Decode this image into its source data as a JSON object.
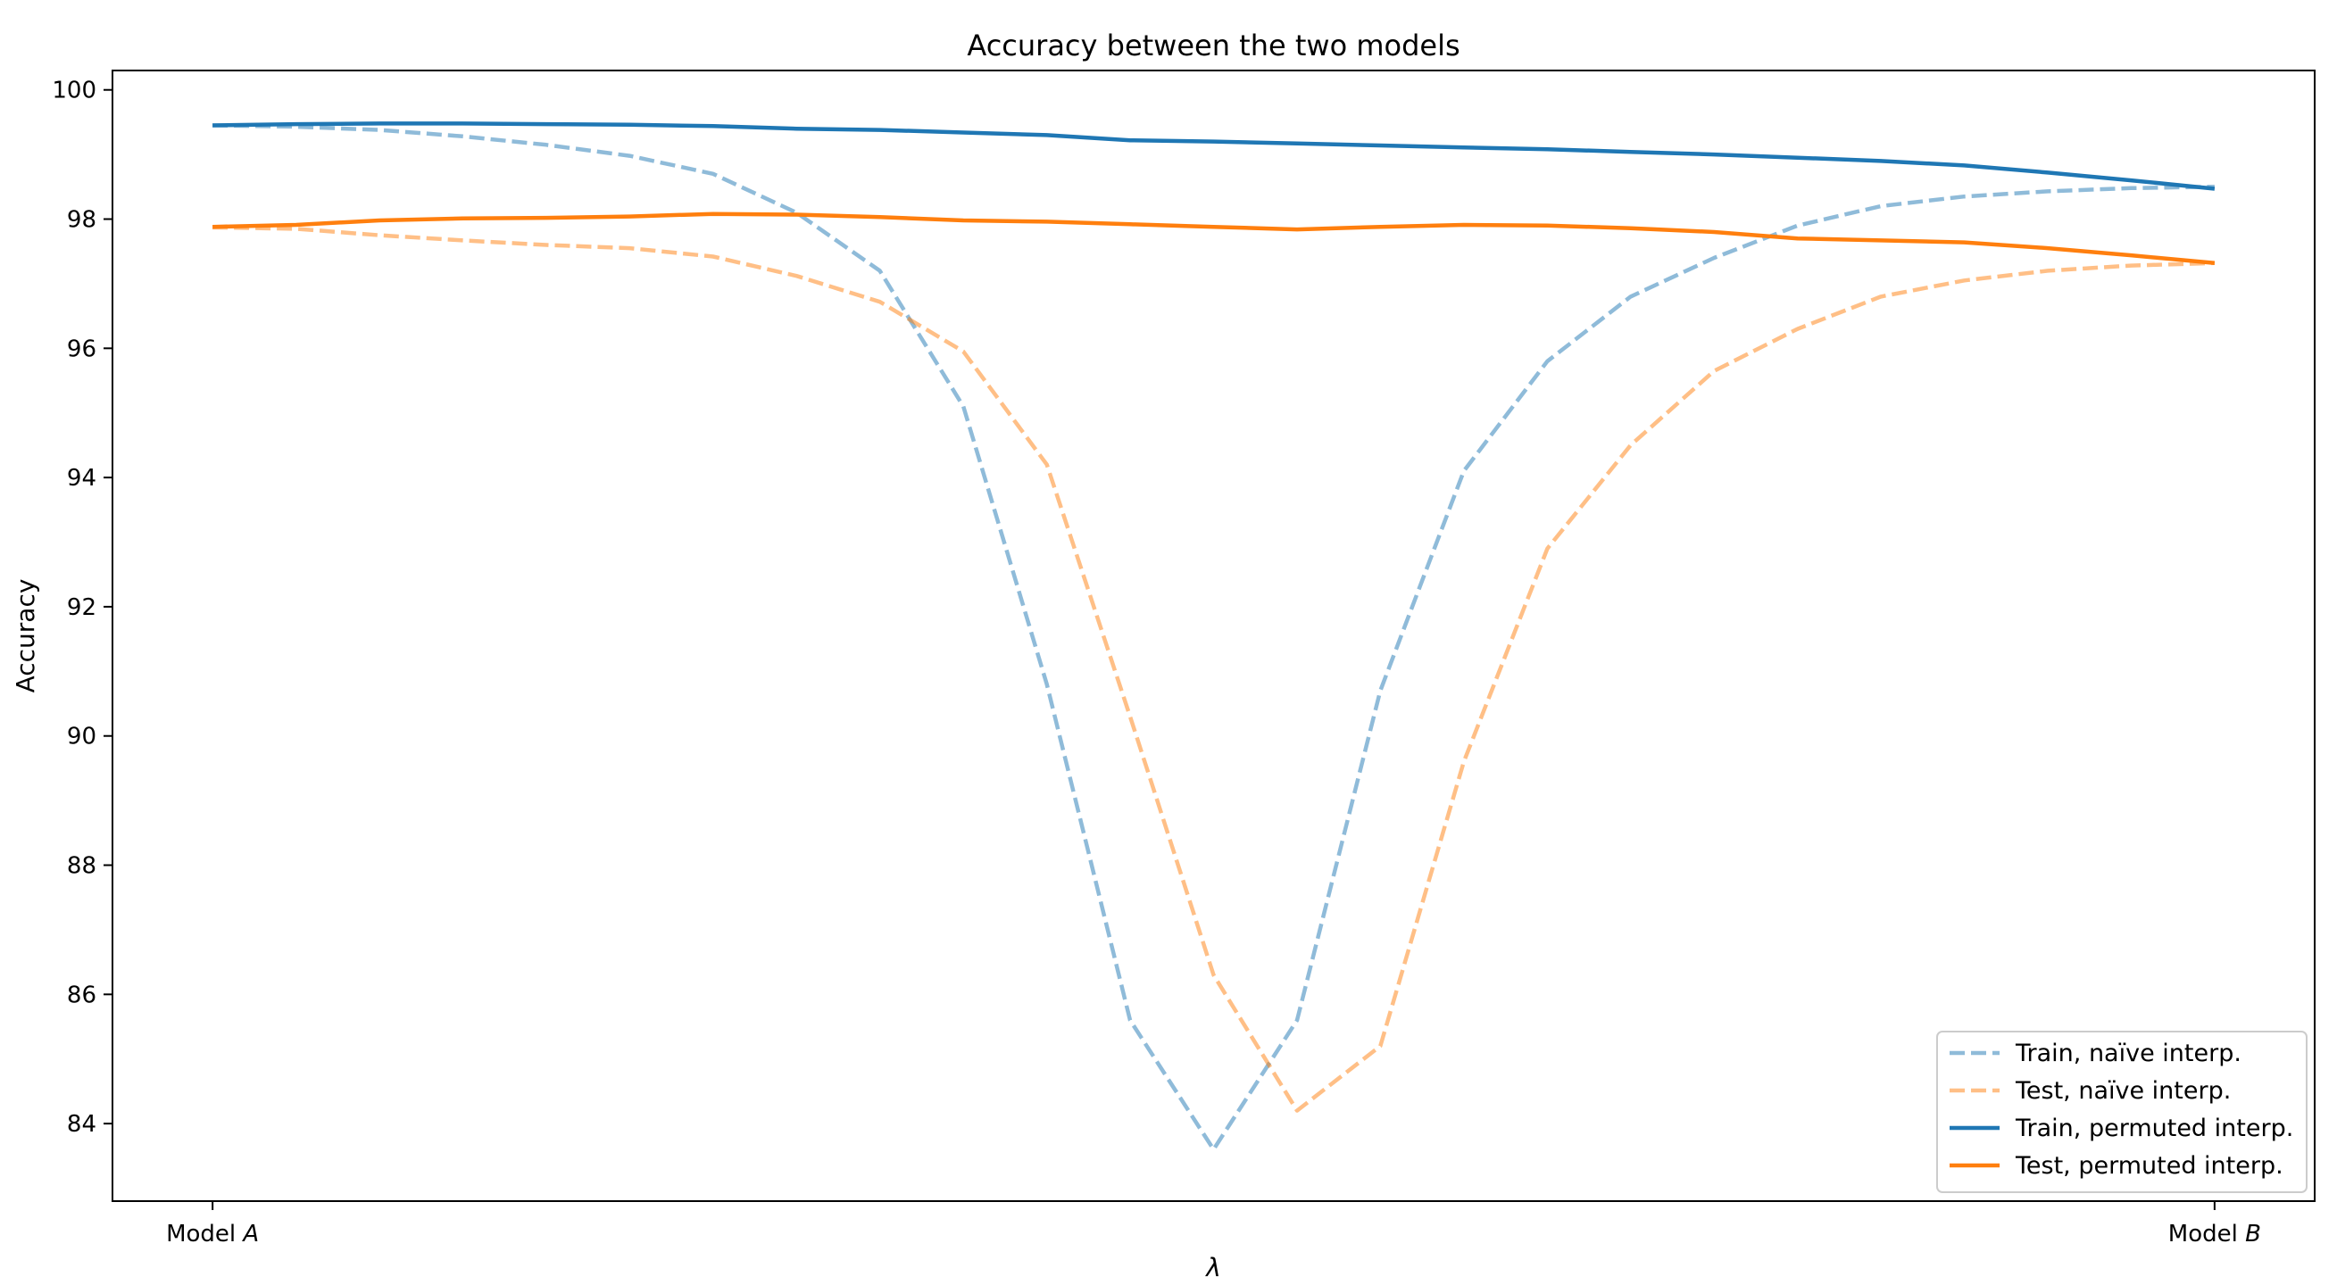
{
  "chart_data": {
    "type": "line",
    "title": "Accuracy between the two models",
    "xlabel": "λ",
    "ylabel": "Accuracy",
    "xlim": [
      0,
      1
    ],
    "ylim": [
      82.8,
      100.3
    ],
    "x_ticks": [
      0,
      1
    ],
    "x_tick_labels": [
      {
        "text": "Model ",
        "italic": "A"
      },
      {
        "text": "Model ",
        "italic": "B"
      }
    ],
    "y_ticks": [
      84,
      86,
      88,
      90,
      92,
      94,
      96,
      98,
      100
    ],
    "legend_position": "lower right",
    "x": [
      0,
      0.0417,
      0.0833,
      0.125,
      0.1667,
      0.2083,
      0.25,
      0.2917,
      0.3333,
      0.375,
      0.4167,
      0.4583,
      0.5,
      0.5417,
      0.5833,
      0.625,
      0.6667,
      0.7083,
      0.75,
      0.7917,
      0.8333,
      0.875,
      0.9167,
      0.9583,
      1
    ],
    "series": [
      {
        "name": "Train, naïve interp.",
        "style": "dashed",
        "color": "#1f77b4",
        "alpha": 0.5,
        "values": [
          99.45,
          99.43,
          99.38,
          99.28,
          99.15,
          98.98,
          98.7,
          98.1,
          97.2,
          95.1,
          90.8,
          85.6,
          83.6,
          85.6,
          90.7,
          94.1,
          95.8,
          96.8,
          97.4,
          97.9,
          98.2,
          98.35,
          98.43,
          98.48,
          98.5
        ]
      },
      {
        "name": "Test, naïve interp.",
        "style": "dashed",
        "color": "#ff7f0e",
        "alpha": 0.5,
        "values": [
          97.87,
          97.85,
          97.75,
          97.67,
          97.6,
          97.55,
          97.42,
          97.12,
          96.72,
          95.95,
          94.2,
          90.3,
          86.3,
          84.2,
          85.2,
          89.6,
          92.9,
          94.5,
          95.65,
          96.3,
          96.8,
          97.05,
          97.2,
          97.28,
          97.32
        ]
      },
      {
        "name": "Train, permuted interp.",
        "style": "solid",
        "color": "#1f77b4",
        "alpha": 1,
        "values": [
          99.45,
          99.47,
          99.48,
          99.48,
          99.47,
          99.46,
          99.44,
          99.4,
          99.38,
          99.34,
          99.3,
          99.22,
          99.2,
          99.17,
          99.14,
          99.11,
          99.08,
          99.04,
          99.0,
          98.95,
          98.9,
          98.83,
          98.72,
          98.6,
          98.47
        ]
      },
      {
        "name": "Test, permuted interp.",
        "style": "solid",
        "color": "#ff7f0e",
        "alpha": 1,
        "values": [
          97.88,
          97.91,
          97.98,
          98.01,
          98.02,
          98.04,
          98.08,
          98.07,
          98.03,
          97.98,
          97.96,
          97.92,
          97.88,
          97.84,
          97.88,
          97.91,
          97.9,
          97.86,
          97.8,
          97.7,
          97.67,
          97.64,
          97.55,
          97.44,
          97.32
        ]
      }
    ]
  }
}
